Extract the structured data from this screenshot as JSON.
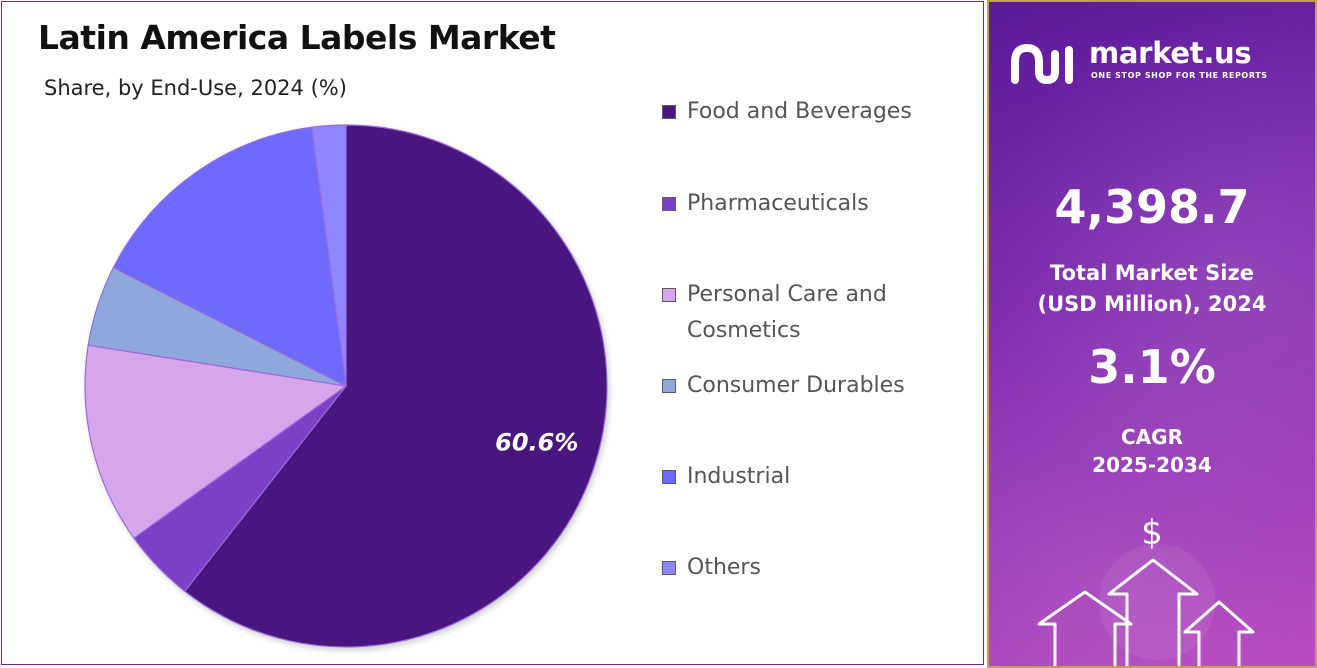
{
  "title": "Latin America Labels Market",
  "subtitle": "Share, by End-Use, 2024 (%)",
  "chart_data": {
    "type": "pie",
    "categories": [
      "Food and Beverages",
      "Pharmaceuticals",
      "Personal Care and Cosmetics",
      "Consumer Durables",
      "Industrial",
      "Others"
    ],
    "values": [
      60.6,
      4.5,
      12.4,
      5.0,
      15.4,
      2.1
    ],
    "colors": [
      "#4a1580",
      "#7b40c8",
      "#d5a6ec",
      "#8ea8dc",
      "#6e6aff",
      "#8f86ff"
    ],
    "data_labels": [
      "60.6%",
      "",
      "",
      "",
      "",
      ""
    ],
    "start_angle_deg": 0,
    "direction": "clockwise",
    "legend_position": "right"
  },
  "legend_items": [
    {
      "label": "Food and Beverages"
    },
    {
      "label": "Pharmaceuticals"
    },
    {
      "label": "Personal Care and Cosmetics"
    },
    {
      "label": "Consumer Durables"
    },
    {
      "label": "Industrial"
    },
    {
      "label": "Others"
    }
  ],
  "sidebar": {
    "brand_name": "market.us",
    "brand_tagline": "ONE STOP SHOP FOR THE REPORTS",
    "market_size_value": "4,398.7",
    "market_size_label_line1": "Total Market Size",
    "market_size_label_line2": "(USD Million), 2024",
    "cagr_value": "3.1%",
    "cagr_label_line1": "CAGR",
    "cagr_label_line2": "2025-2034",
    "dollar_symbol": "$",
    "icons": [
      "market-us-logo-icon",
      "dollar-icon",
      "up-arrow-icon"
    ]
  },
  "colors": {
    "panel_gradient_start": "#5a1a9a",
    "panel_gradient_end": "#b94bc0",
    "panel_border": "#c4a14a"
  }
}
